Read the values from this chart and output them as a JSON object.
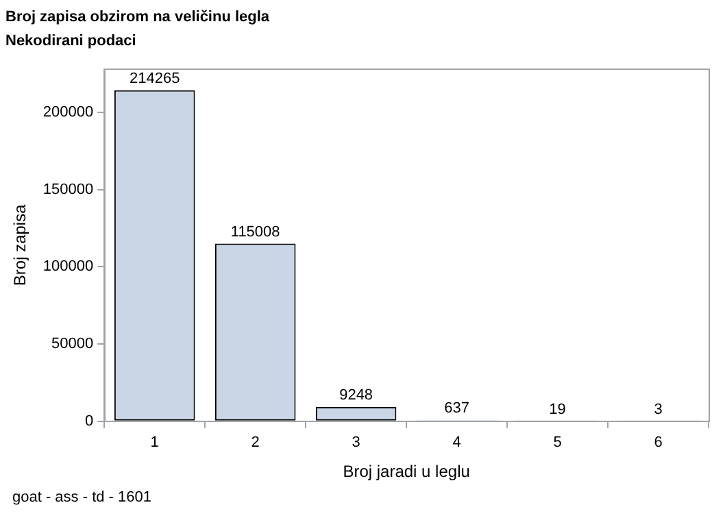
{
  "chart_data": {
    "type": "bar",
    "title": "Broj zapisa obzirom na veličinu legla",
    "subtitle": "Nekodirani podaci",
    "xlabel": "Broj jaradi u leglu",
    "ylabel": "Broj zapisa",
    "categories": [
      "1",
      "2",
      "3",
      "4",
      "5",
      "6"
    ],
    "values": [
      214265,
      115008,
      9248,
      637,
      19,
      3
    ],
    "color": "#cad5e5",
    "ylim": [
      0,
      228000
    ],
    "yticks": [
      0,
      50000,
      100000,
      150000,
      200000
    ],
    "grid": false,
    "legend": false,
    "data_labels": true,
    "annotations": [
      "goat - ass - td - 1601"
    ]
  }
}
